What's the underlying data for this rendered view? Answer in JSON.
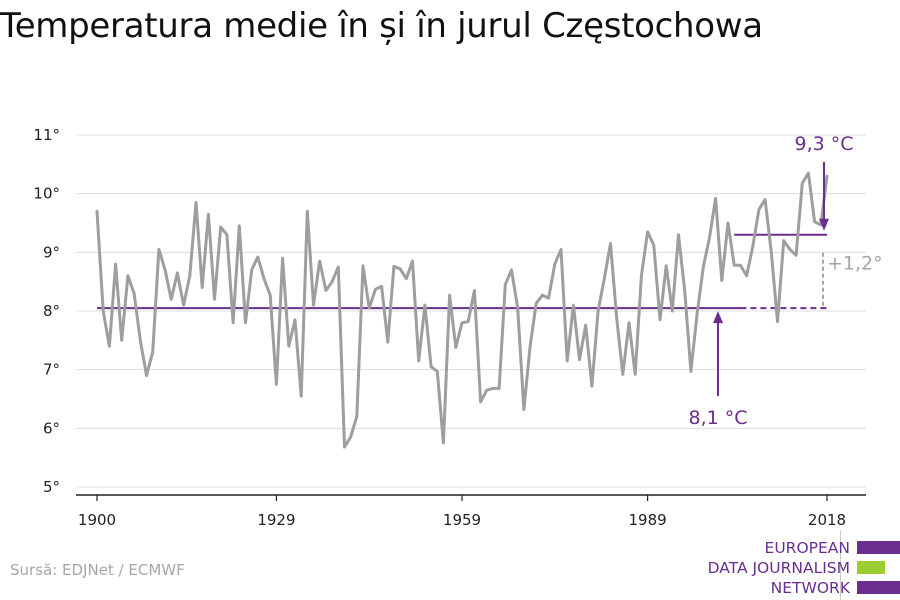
{
  "title": "Temperatura medie în și în jurul Częstochowa",
  "source": "Sursă: EDJNet / ECMWF",
  "logo": {
    "lines": [
      "EUROPEAN",
      "DATA JOURNALISM",
      "NETWORK"
    ],
    "colors": [
      "#6a2e8e",
      "#9acd32",
      "#6a2e8e"
    ]
  },
  "colors": {
    "series": "#9e9e9e",
    "accent": "#6a2e8e",
    "grid": "#dddddd",
    "diff": "#a6a6a6"
  },
  "chart_data": {
    "type": "line",
    "title": "Temperatura medie în și în jurul Częstochowa",
    "xlabel": "",
    "ylabel": "",
    "xlim": [
      1900,
      2018
    ],
    "ylim": [
      5,
      11
    ],
    "y_ticks": [
      5,
      6,
      7,
      8,
      9,
      10,
      11
    ],
    "y_tick_labels": [
      "5°",
      "6°",
      "7°",
      "8°",
      "9°",
      "10°",
      "11°"
    ],
    "x_ticks": [
      1900,
      1929,
      1959,
      1989,
      2018
    ],
    "x_tick_labels": [
      "1900",
      "1929",
      "1959",
      "1989",
      "2018"
    ],
    "grid": true,
    "series": [
      {
        "x": [
          1900,
          1901,
          1902,
          1903,
          1904,
          1905,
          1906,
          1907,
          1908,
          1909,
          1910,
          1911,
          1912,
          1913,
          1914,
          1915,
          1916,
          1917,
          1918,
          1919,
          1920,
          1921,
          1922,
          1923,
          1924,
          1925,
          1926,
          1927,
          1928,
          1929,
          1930,
          1931,
          1932,
          1933,
          1934,
          1935,
          1936,
          1937,
          1938,
          1939,
          1940,
          1941,
          1942,
          1943,
          1944,
          1945,
          1946,
          1947,
          1948,
          1949,
          1950,
          1951,
          1952,
          1953,
          1954,
          1955,
          1956,
          1957,
          1958,
          1959,
          1960,
          1961,
          1962,
          1963,
          1964,
          1965,
          1966,
          1967,
          1968,
          1969,
          1970,
          1971,
          1972,
          1973,
          1974,
          1975,
          1976,
          1977,
          1978,
          1979,
          1980,
          1981,
          1982,
          1983,
          1984,
          1985,
          1986,
          1987,
          1988,
          1989,
          1990,
          1991,
          1992,
          1993,
          1994,
          1995,
          1996,
          1997,
          1998,
          1999,
          2000,
          2001,
          2002,
          2003,
          2004,
          2005,
          2006,
          2007,
          2008,
          2009,
          2010,
          2011,
          2012,
          2013,
          2014,
          2015,
          2016,
          2017,
          2018
        ],
        "values": [
          9.7,
          8.0,
          7.4,
          8.8,
          7.5,
          8.6,
          8.3,
          7.5,
          6.9,
          7.3,
          9.05,
          8.7,
          8.2,
          8.65,
          8.1,
          8.6,
          9.85,
          8.4,
          9.65,
          8.2,
          9.43,
          9.3,
          7.8,
          9.45,
          7.8,
          8.7,
          8.92,
          8.55,
          8.27,
          6.75,
          8.9,
          7.4,
          7.85,
          6.55,
          9.7,
          8.1,
          8.85,
          8.35,
          8.5,
          8.75,
          5.68,
          5.85,
          6.2,
          8.77,
          8.05,
          8.37,
          8.42,
          7.47,
          8.76,
          8.72,
          8.55,
          8.85,
          7.15,
          8.1,
          7.05,
          6.97,
          5.75,
          8.27,
          7.38,
          7.8,
          7.82,
          8.35,
          6.45,
          6.65,
          6.68,
          6.68,
          8.45,
          8.7,
          8.05,
          6.32,
          7.4,
          8.13,
          8.27,
          8.22,
          8.8,
          9.05,
          7.15,
          8.1,
          7.17,
          7.76,
          6.72,
          8.0,
          8.55,
          9.15,
          7.88,
          6.92,
          7.8,
          6.92,
          8.6,
          9.35,
          9.12,
          7.85,
          8.77,
          8.0,
          9.3,
          8.35,
          6.97,
          7.95,
          8.75,
          9.25,
          9.92,
          8.52,
          9.5,
          8.78,
          8.78,
          8.6,
          9.1,
          9.73,
          9.9,
          9.0,
          7.82,
          9.2,
          9.05,
          8.95,
          10.18,
          10.35,
          9.52,
          9.47,
          10.3
        ]
      }
    ],
    "annotations": [
      {
        "label": "8,1 °C",
        "value": 8.05,
        "x_start": 1900,
        "x_end": 2004,
        "style": "solid"
      },
      {
        "label": "9,3 °C",
        "value": 9.3,
        "x_start": 2003,
        "x_end": 2018,
        "style": "solid"
      },
      {
        "label": "+1,2°",
        "from": 8.05,
        "to": 9.3,
        "x": 2018,
        "style": "dashed"
      }
    ]
  }
}
